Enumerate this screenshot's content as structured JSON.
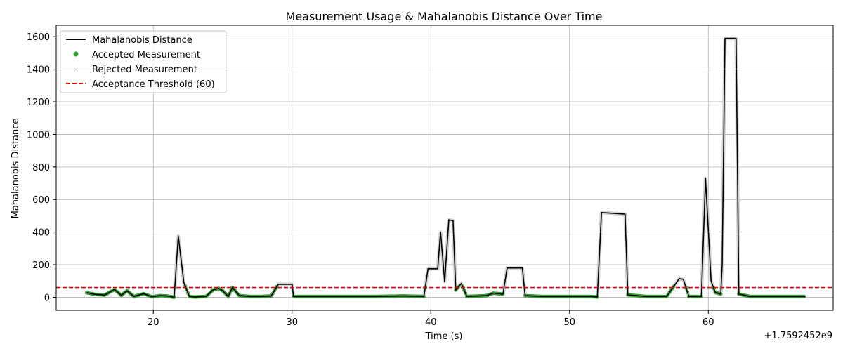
{
  "chart_data": {
    "type": "line",
    "title": "Measurement Usage & Mahalanobis Distance Over Time",
    "xlabel": "Time (s)",
    "ylabel": "Mahalanobis Distance",
    "x_offset_label": "+1.7592452e9",
    "xlim": [
      13,
      69
    ],
    "ylim": [
      -80,
      1670
    ],
    "x_ticks": [
      20,
      30,
      40,
      50,
      60
    ],
    "y_ticks": [
      0,
      200,
      400,
      600,
      800,
      1000,
      1200,
      1400,
      1600
    ],
    "grid": true,
    "legend_position": "top-left",
    "threshold": 60,
    "colors": {
      "distance_line": "#000000",
      "accepted": "#2ca02c",
      "rejected": "#c8c8c8",
      "threshold": "#e00000"
    },
    "legend": [
      {
        "key": "distance",
        "label": "Mahalanobis Distance"
      },
      {
        "key": "accepted",
        "label": "Accepted Measurement"
      },
      {
        "key": "rejected",
        "label": "Rejected Measurement"
      },
      {
        "key": "threshold",
        "label": "Acceptance Threshold (60)"
      }
    ],
    "series": [
      {
        "name": "Mahalanobis Distance",
        "points": [
          [
            15.2,
            28
          ],
          [
            15.8,
            18
          ],
          [
            16.5,
            14
          ],
          [
            17.2,
            48
          ],
          [
            17.7,
            12
          ],
          [
            18.1,
            40
          ],
          [
            18.6,
            5
          ],
          [
            19.3,
            22
          ],
          [
            19.9,
            3
          ],
          [
            20.5,
            10
          ],
          [
            21.0,
            8
          ],
          [
            21.5,
            0
          ],
          [
            21.8,
            375
          ],
          [
            22.2,
            90
          ],
          [
            22.6,
            5
          ],
          [
            23.0,
            2
          ],
          [
            23.8,
            5
          ],
          [
            24.3,
            45
          ],
          [
            24.7,
            55
          ],
          [
            25.0,
            40
          ],
          [
            25.4,
            5
          ],
          [
            25.7,
            60
          ],
          [
            26.2,
            10
          ],
          [
            27.0,
            5
          ],
          [
            27.8,
            5
          ],
          [
            28.5,
            8
          ],
          [
            29.0,
            80
          ],
          [
            30.0,
            80
          ],
          [
            30.1,
            5
          ],
          [
            34.0,
            5
          ],
          [
            36.0,
            5
          ],
          [
            38.0,
            8
          ],
          [
            39.5,
            5
          ],
          [
            39.8,
            175
          ],
          [
            40.5,
            175
          ],
          [
            40.7,
            400
          ],
          [
            41.0,
            95
          ],
          [
            41.3,
            475
          ],
          [
            41.6,
            470
          ],
          [
            41.8,
            45
          ],
          [
            42.2,
            85
          ],
          [
            42.6,
            5
          ],
          [
            44.0,
            10
          ],
          [
            44.5,
            25
          ],
          [
            45.2,
            20
          ],
          [
            45.5,
            180
          ],
          [
            46.6,
            180
          ],
          [
            46.8,
            10
          ],
          [
            48.0,
            5
          ],
          [
            50.0,
            5
          ],
          [
            51.5,
            5
          ],
          [
            52.0,
            2
          ],
          [
            52.3,
            520
          ],
          [
            54.0,
            510
          ],
          [
            54.2,
            15
          ],
          [
            55.5,
            5
          ],
          [
            57.0,
            5
          ],
          [
            57.9,
            115
          ],
          [
            58.2,
            110
          ],
          [
            58.6,
            5
          ],
          [
            59.5,
            5
          ],
          [
            59.8,
            730
          ],
          [
            60.2,
            100
          ],
          [
            60.5,
            30
          ],
          [
            60.9,
            20
          ],
          [
            61.0,
            200
          ],
          [
            61.2,
            1590
          ],
          [
            62.0,
            1590
          ],
          [
            62.2,
            20
          ],
          [
            63.0,
            5
          ],
          [
            65.0,
            5
          ],
          [
            67.0,
            5
          ]
        ]
      }
    ],
    "rejected_segments": [
      [
        21.6,
        22.3
      ],
      [
        29.0,
        30.1
      ],
      [
        39.7,
        41.7
      ],
      [
        45.4,
        46.7
      ],
      [
        52.2,
        54.1
      ],
      [
        57.8,
        58.3
      ],
      [
        59.7,
        60.3
      ],
      [
        61.0,
        62.1
      ]
    ]
  }
}
